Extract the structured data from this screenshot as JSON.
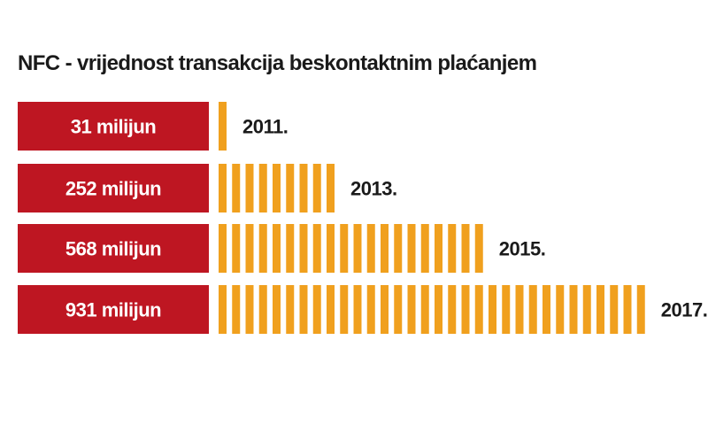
{
  "chart_data": {
    "type": "bar",
    "title": "NFC - vrijednost transakcija beskontaktnim plaćanjem",
    "categories": [
      "2011.",
      "2013.",
      "2015.",
      "2017."
    ],
    "values": [
      31,
      252,
      568,
      931
    ],
    "value_labels": [
      "31 milijun",
      "252 milijun",
      "568 milijun",
      "931 milijun"
    ],
    "orientation": "horizontal",
    "grid": false,
    "colors": {
      "label_box": "#be1622",
      "bar": "#f0a01e"
    }
  }
}
